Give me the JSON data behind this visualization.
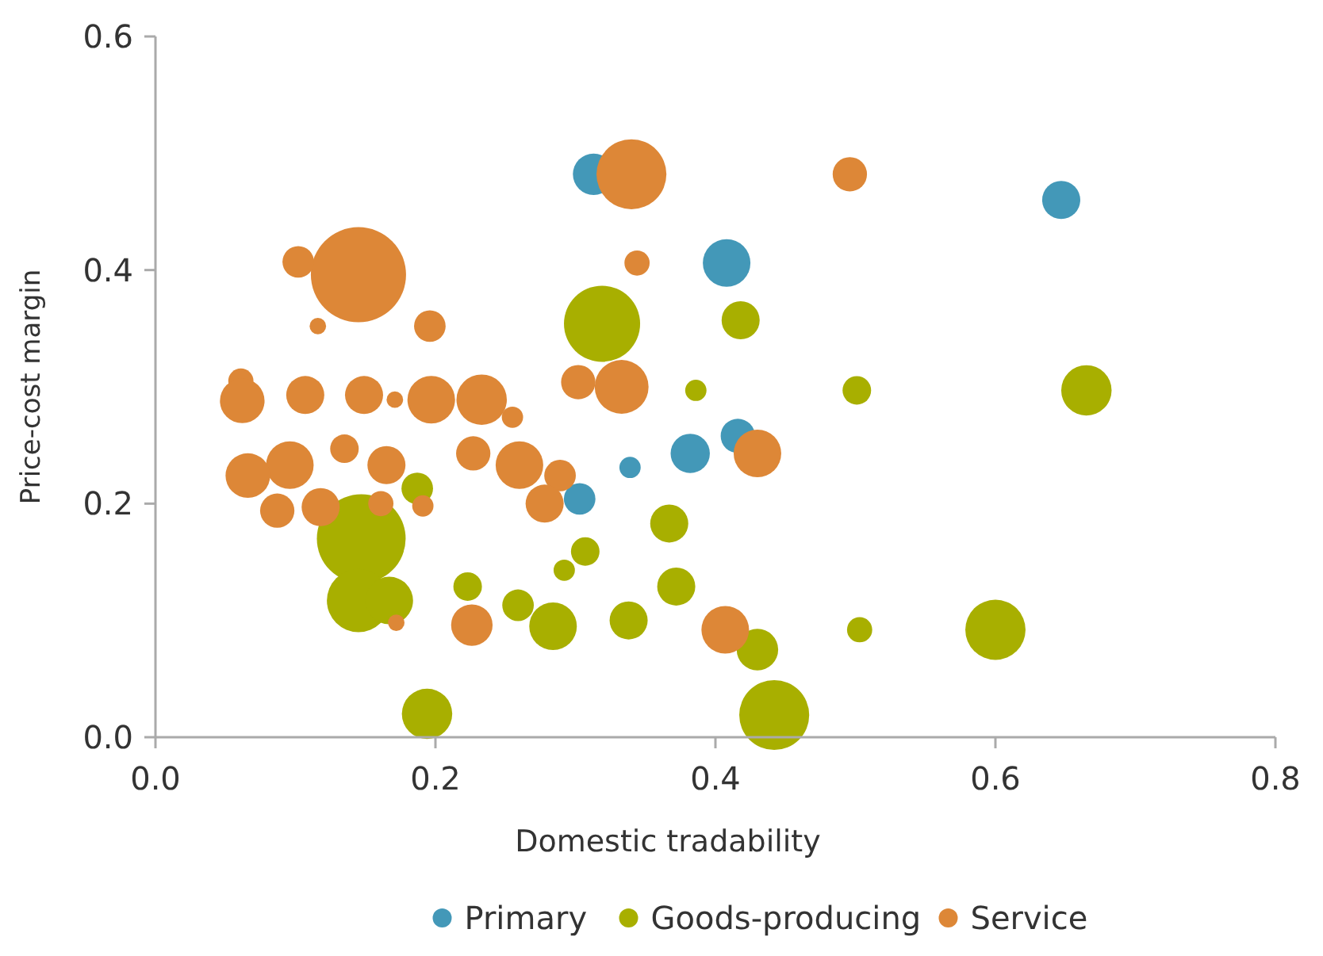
{
  "chart_data": {
    "type": "bubble",
    "xlabel": "Domestic tradability",
    "ylabel": "Price-cost margin",
    "xlim": [
      0,
      0.8
    ],
    "ylim": [
      0,
      0.6
    ],
    "xticks": [
      {
        "value": 0,
        "label": "0.0"
      },
      {
        "value": 0.2,
        "label": "0.2"
      },
      {
        "value": 0.4,
        "label": "0.4"
      },
      {
        "value": 0.6,
        "label": "0.6"
      },
      {
        "value": 0.8,
        "label": "0.8"
      }
    ],
    "yticks": [
      {
        "value": 0,
        "label": "0.0"
      },
      {
        "value": 0.2,
        "label": "0.2"
      },
      {
        "value": 0.4,
        "label": "0.4"
      },
      {
        "value": 0.6,
        "label": "0.6"
      }
    ],
    "grid": false,
    "legend": "bottom",
    "series": [
      {
        "name": "Primary",
        "color": "#4398b8",
        "x": [
          0.313,
          0.647,
          0.408,
          0.416,
          0.382,
          0.339,
          0.303
        ],
        "values": [
          0.482,
          0.46,
          0.406,
          0.258,
          0.243,
          0.231,
          0.204
        ],
        "sizes": [
          0.19,
          0.16,
          0.25,
          0.13,
          0.17,
          0.05,
          0.11
        ]
      },
      {
        "name": "Goods-producing",
        "color": "#a8af00",
        "x": [
          0.319,
          0.418,
          0.386,
          0.501,
          0.665,
          0.367,
          0.307,
          0.292,
          0.372,
          0.223,
          0.259,
          0.284,
          0.338,
          0.43,
          0.503,
          0.6,
          0.442,
          0.187,
          0.147,
          0.145,
          0.167,
          0.194
        ],
        "values": [
          0.354,
          0.357,
          0.297,
          0.297,
          0.297,
          0.183,
          0.159,
          0.143,
          0.129,
          0.129,
          0.113,
          0.095,
          0.1,
          0.075,
          0.092,
          0.092,
          0.019,
          0.213,
          0.17,
          0.117,
          0.117,
          0.02
        ],
        "sizes": [
          0.64,
          0.16,
          0.05,
          0.09,
          0.28,
          0.16,
          0.09,
          0.05,
          0.16,
          0.09,
          0.11,
          0.25,
          0.16,
          0.19,
          0.07,
          0.4,
          0.54,
          0.11,
          0.87,
          0.44,
          0.25,
          0.28
        ]
      },
      {
        "name": "Service",
        "color": "#dd8737",
        "x": [
          0.145,
          0.102,
          0.116,
          0.196,
          0.061,
          0.062,
          0.107,
          0.149,
          0.171,
          0.197,
          0.233,
          0.255,
          0.135,
          0.227,
          0.096,
          0.066,
          0.165,
          0.26,
          0.289,
          0.278,
          0.087,
          0.118,
          0.161,
          0.191,
          0.172,
          0.226,
          0.34,
          0.496,
          0.344,
          0.302,
          0.333,
          0.43,
          0.407
        ],
        "values": [
          0.396,
          0.407,
          0.352,
          0.352,
          0.305,
          0.288,
          0.293,
          0.293,
          0.289,
          0.289,
          0.289,
          0.274,
          0.247,
          0.243,
          0.233,
          0.224,
          0.233,
          0.233,
          0.224,
          0.2,
          0.194,
          0.197,
          0.2,
          0.198,
          0.098,
          0.096,
          0.482,
          0.482,
          0.406,
          0.304,
          0.3,
          0.243,
          0.092
        ],
        "sizes": [
          1,
          0.11,
          0.03,
          0.11,
          0.07,
          0.22,
          0.16,
          0.16,
          0.03,
          0.25,
          0.28,
          0.05,
          0.09,
          0.13,
          0.25,
          0.22,
          0.16,
          0.25,
          0.11,
          0.16,
          0.13,
          0.16,
          0.07,
          0.05,
          0.03,
          0.19,
          0.54,
          0.13,
          0.07,
          0.13,
          0.32,
          0.25,
          0.25
        ]
      }
    ]
  }
}
